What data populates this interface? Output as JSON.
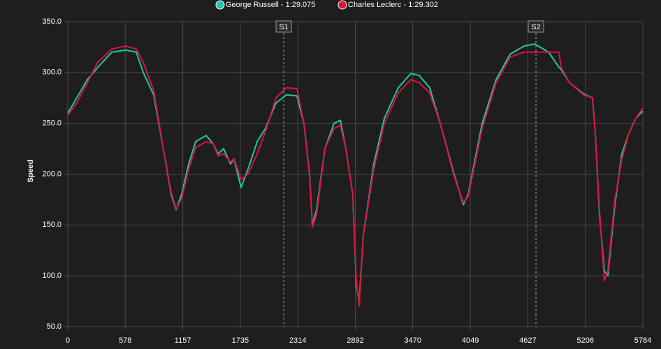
{
  "chart_data": {
    "type": "line",
    "y_label": "Speed",
    "x": [
      0,
      91,
      197,
      302,
      443,
      583,
      689,
      759,
      864,
      970,
      1040,
      1089,
      1145,
      1216,
      1286,
      1391,
      1462,
      1511,
      1567,
      1637,
      1672,
      1743,
      1813,
      1905,
      1989,
      2094,
      2200,
      2305,
      2375,
      2432,
      2460,
      2502,
      2586,
      2678,
      2741,
      2797,
      2867,
      2902,
      2931,
      2973,
      3078,
      3184,
      3324,
      3451,
      3535,
      3640,
      3746,
      3886,
      3978,
      4027,
      4168,
      4308,
      4449,
      4589,
      4695,
      4836,
      4941,
      4962,
      5046,
      5187,
      5278,
      5306,
      5348,
      5397,
      5432,
      5503,
      5573,
      5643,
      5714,
      5784
    ],
    "series": [
      {
        "name": "George Russell - 1:29.075",
        "color": "#20c4ad",
        "values": [
          260,
          275,
          293,
          305,
          320,
          322,
          320,
          300,
          278,
          220,
          180,
          165,
          180,
          210,
          232,
          238,
          230,
          220,
          225,
          210,
          215,
          187,
          205,
          232,
          245,
          270,
          278,
          277,
          250,
          200,
          150,
          165,
          225,
          250,
          253,
          225,
          180,
          90,
          75,
          140,
          210,
          255,
          285,
          299,
          297,
          285,
          250,
          200,
          170,
          180,
          250,
          293,
          318,
          326,
          328,
          320,
          305,
          303,
          290,
          279,
          275,
          240,
          160,
          105,
          100,
          170,
          220,
          240,
          255,
          262
        ]
      },
      {
        "name": "Charles Leclerc - 1:29.302",
        "color": "#dc143c",
        "values": [
          258,
          270,
          290,
          310,
          323,
          326,
          323,
          310,
          282,
          220,
          182,
          166,
          176,
          205,
          226,
          232,
          230,
          218,
          220,
          212,
          215,
          195,
          200,
          220,
          242,
          275,
          285,
          284,
          250,
          198,
          148,
          160,
          225,
          245,
          248,
          225,
          180,
          95,
          70,
          140,
          205,
          250,
          280,
          293,
          290,
          280,
          250,
          198,
          172,
          178,
          245,
          290,
          315,
          320,
          320,
          320,
          320,
          305,
          290,
          278,
          275,
          240,
          165,
          95,
          105,
          175,
          215,
          240,
          255,
          265
        ]
      }
    ],
    "sectors": [
      {
        "label": "S1",
        "x": 2172
      },
      {
        "label": "S2",
        "x": 4709
      }
    ],
    "xlim": [
      0,
      5784
    ],
    "xticks": [
      0,
      578,
      1157,
      1735,
      2314,
      2892,
      3470,
      4049,
      4627,
      5206,
      5784
    ],
    "ylim": [
      50,
      350
    ],
    "yticks": [
      {
        "value": 50,
        "label": "50.0"
      },
      {
        "value": 100,
        "label": "100.0"
      },
      {
        "value": 150,
        "label": "150.0"
      },
      {
        "value": 200,
        "label": "200.0"
      },
      {
        "value": 250,
        "label": "250.0"
      },
      {
        "value": 300,
        "label": "300.0"
      },
      {
        "value": 350,
        "label": "350.0"
      }
    ],
    "grid": true
  }
}
